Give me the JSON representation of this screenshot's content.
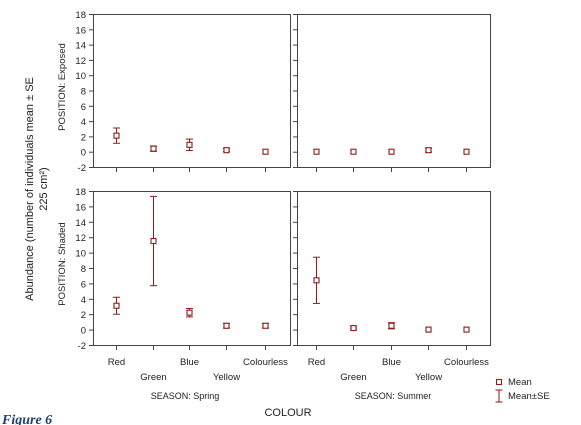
{
  "chart_data": {
    "type": "scatter",
    "xlabel": "COLOUR",
    "ylabel_line1": "Abundance (number of individuals mean ± SE",
    "ylabel_line2": "225 cm²)",
    "categories": [
      "Red",
      "Green",
      "Blue",
      "Yellow",
      "Colourless"
    ],
    "ylim": [
      -2,
      18
    ],
    "yticks": [
      -2,
      0,
      2,
      4,
      6,
      8,
      10,
      12,
      14,
      16,
      18
    ],
    "grid": false,
    "marker_color": "#8b1a1a",
    "legend": {
      "position": "bottom-right",
      "mean": "Mean",
      "se": "Mean±SE"
    },
    "panels": [
      {
        "season": "Spring",
        "position": "Exposed",
        "mean": [
          2.1,
          0.4,
          0.9,
          0.2,
          0.0
        ],
        "se": [
          1.0,
          0.35,
          0.75,
          0.2,
          0.0
        ]
      },
      {
        "season": "Summer",
        "position": "Exposed",
        "mean": [
          0.0,
          0.0,
          0.0,
          0.2,
          0.0
        ],
        "se": [
          0.0,
          0.0,
          0.0,
          0.25,
          0.0
        ]
      },
      {
        "season": "Spring",
        "position": "Shaded",
        "mean": [
          3.1,
          11.5,
          2.2,
          0.5,
          0.5
        ],
        "se": [
          1.1,
          5.8,
          0.55,
          0.3,
          0.3
        ]
      },
      {
        "season": "Summer",
        "position": "Shaded",
        "mean": [
          6.4,
          0.2,
          0.5,
          0.0,
          0.0
        ],
        "se": [
          3.0,
          0.15,
          0.4,
          0.0,
          0.0
        ]
      }
    ],
    "row_labels": [
      "POSITION: Exposed",
      "POSITION: Shaded"
    ],
    "column_labels": [
      "SEASON: Spring",
      "SEASON: Summer"
    ]
  },
  "caption": "Figure 6"
}
